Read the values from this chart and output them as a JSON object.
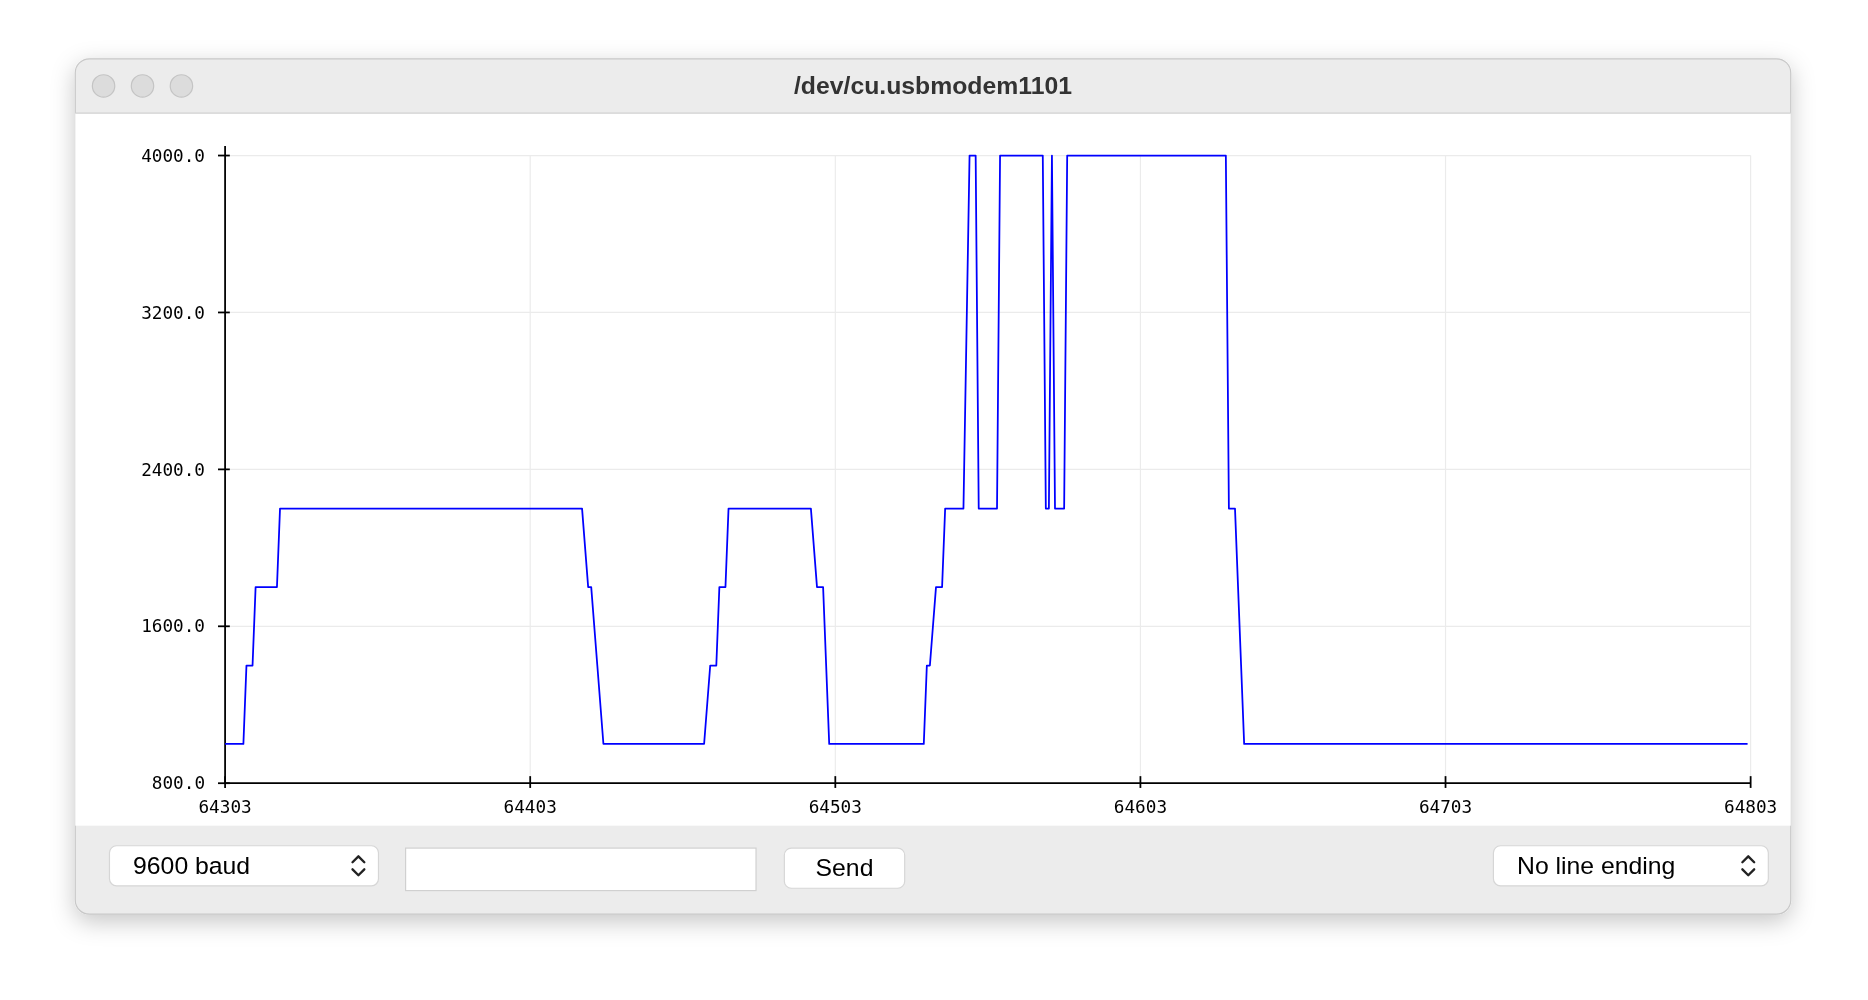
{
  "chart_data": {
    "type": "line",
    "title": "/dev/cu.usbmodem1101",
    "x": [
      64303,
      64309,
      64310,
      64312,
      64313,
      64320,
      64321,
      64420,
      64422,
      64423,
      64425,
      64427,
      64460,
      64462,
      64464,
      64465,
      64467,
      64468,
      64495,
      64497,
      64499,
      64500,
      64501,
      64532,
      64533,
      64534,
      64536,
      64538,
      64539,
      64545,
      64547,
      64549,
      64550,
      64556,
      64557,
      64571,
      64572,
      64573,
      64574,
      64575,
      64578,
      64579,
      64631,
      64632,
      64634,
      64636,
      64637,
      64802
    ],
    "series": [
      {
        "color": "#0000ff",
        "values": [
          1000,
          1000,
          1400,
          1400,
          1800,
          1800,
          2200,
          2200,
          1800,
          1800,
          1400,
          1000,
          1000,
          1400,
          1400,
          1800,
          1800,
          2200,
          2200,
          1800,
          1800,
          1400,
          1000,
          1000,
          1400,
          1400,
          1800,
          1800,
          2200,
          2200,
          4000,
          4000,
          2200,
          2200,
          4000,
          4000,
          2200,
          2200,
          4000,
          2200,
          2200,
          4000,
          4000,
          2200,
          2200,
          1400,
          1000,
          1000
        ]
      }
    ],
    "xlim": [
      64303,
      64803
    ],
    "xticks": [
      64303,
      64403,
      64503,
      64603,
      64703,
      64803
    ],
    "ylim": [
      800,
      4000
    ],
    "yticks": [
      {
        "value": 800,
        "label": "800.0"
      },
      {
        "value": 1600,
        "label": "1600.0"
      },
      {
        "value": 2400,
        "label": "2400.0"
      },
      {
        "value": 3200,
        "label": "3200.0"
      },
      {
        "value": 4000,
        "label": "4000.0"
      }
    ],
    "grid": true,
    "marker": "none",
    "line_style": "solid",
    "annotations": [
      "9600 baud",
      "Send",
      "No line ending"
    ]
  }
}
